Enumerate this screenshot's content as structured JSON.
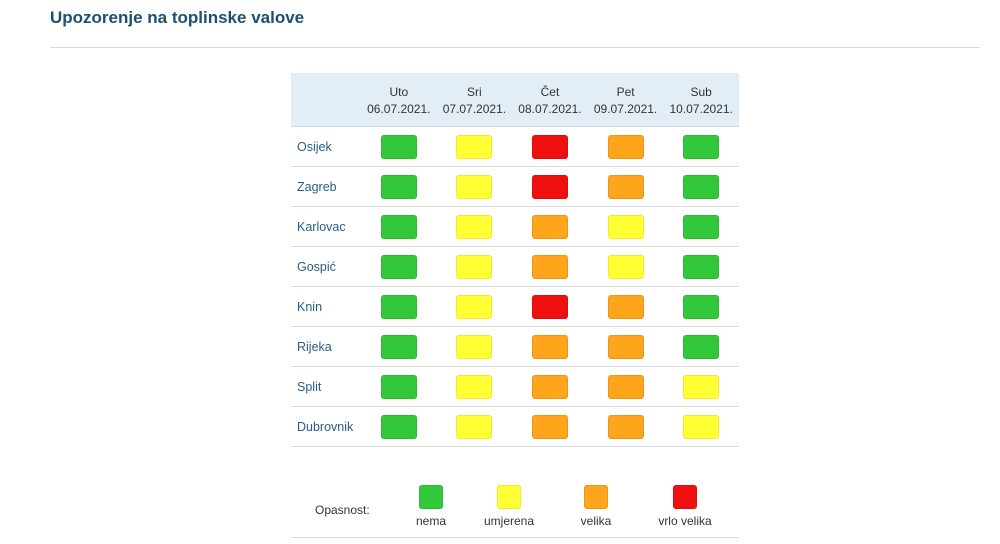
{
  "page": {
    "title": "Upozorenje na toplinske valove"
  },
  "colors": {
    "nema": "#33c839",
    "umjerena": "#ffff33",
    "velika": "#ffa51b",
    "vrlo_velika": "#f01010"
  },
  "days": [
    {
      "name": "Uto",
      "date": "06.07.2021."
    },
    {
      "name": "Sri",
      "date": "07.07.2021."
    },
    {
      "name": "Čet",
      "date": "08.07.2021."
    },
    {
      "name": "Pet",
      "date": "09.07.2021."
    },
    {
      "name": "Sub",
      "date": "10.07.2021."
    }
  ],
  "cities": [
    {
      "name": "Osijek",
      "levels": [
        "nema",
        "umjerena",
        "vrlo_velika",
        "velika",
        "nema"
      ]
    },
    {
      "name": "Zagreb",
      "levels": [
        "nema",
        "umjerena",
        "vrlo_velika",
        "velika",
        "nema"
      ]
    },
    {
      "name": "Karlovac",
      "levels": [
        "nema",
        "umjerena",
        "velika",
        "umjerena",
        "nema"
      ]
    },
    {
      "name": "Gospić",
      "levels": [
        "nema",
        "umjerena",
        "velika",
        "umjerena",
        "nema"
      ]
    },
    {
      "name": "Knin",
      "levels": [
        "nema",
        "umjerena",
        "vrlo_velika",
        "velika",
        "nema"
      ]
    },
    {
      "name": "Rijeka",
      "levels": [
        "nema",
        "umjerena",
        "velika",
        "velika",
        "nema"
      ]
    },
    {
      "name": "Split",
      "levels": [
        "nema",
        "umjerena",
        "velika",
        "velika",
        "umjerena"
      ]
    },
    {
      "name": "Dubrovnik",
      "levels": [
        "nema",
        "umjerena",
        "velika",
        "velika",
        "umjerena"
      ]
    }
  ],
  "legend": {
    "label": "Opasnost:",
    "items": [
      {
        "key": "nema",
        "label": "nema"
      },
      {
        "key": "umjerena",
        "label": "umjerena"
      },
      {
        "key": "velika",
        "label": "velika"
      },
      {
        "key": "vrlo_velika",
        "label": "vrlo velika"
      }
    ]
  }
}
